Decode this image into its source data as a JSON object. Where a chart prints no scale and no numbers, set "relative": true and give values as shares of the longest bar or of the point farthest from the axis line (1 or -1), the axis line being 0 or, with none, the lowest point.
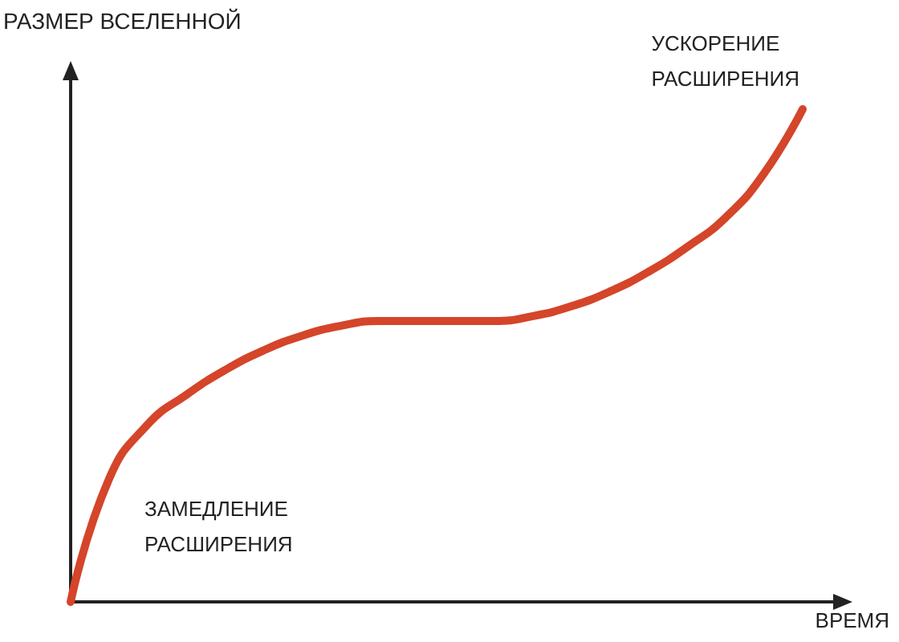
{
  "chart_data": {
    "type": "line",
    "relative": true,
    "xlabel": "ВРЕМЯ",
    "ylabel": "РАЗМЕР ВСЕЛЕННОЙ",
    "categories": [
      null,
      null,
      null,
      null,
      null,
      null,
      null,
      null,
      null,
      null,
      null,
      null,
      null,
      null,
      null,
      null,
      null,
      null,
      null,
      null
    ],
    "series": [
      {
        "color": "#d4452a",
        "values": [
          0,
          0.25,
          0.36,
          0.42,
          0.47,
          0.51,
          0.54,
          0.56,
          0.57,
          0.57,
          0.57,
          0.57,
          0.58,
          0.6,
          0.63,
          0.67,
          0.72,
          0.78,
          0.87,
          1
        ]
      }
    ],
    "annotations": [
      "ЗАМЕДЛЕНИЕ РАСШИРЕНИЯ",
      "УСКОРЕНИЕ РАСШИРЕНИЯ"
    ],
    "grid": false,
    "marker": "none",
    "line_style": "solid",
    "tick_labels": false
  }
}
